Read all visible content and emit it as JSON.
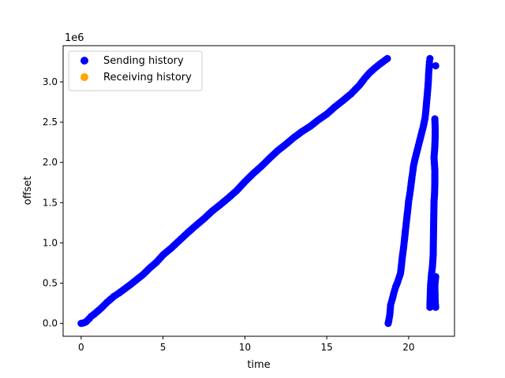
{
  "chart_data": {
    "type": "scatter",
    "title": "",
    "xlabel": "time",
    "ylabel": "offset",
    "y_offset_label": "1e6",
    "xlim": [
      -1.1,
      22.8
    ],
    "ylim": [
      -160000,
      3450000
    ],
    "x_ticks": [
      {
        "value": 0,
        "label": "0"
      },
      {
        "value": 5,
        "label": "5"
      },
      {
        "value": 10,
        "label": "10"
      },
      {
        "value": 15,
        "label": "15"
      },
      {
        "value": 20,
        "label": "20"
      }
    ],
    "y_ticks": [
      {
        "value": 0,
        "label": "0.0"
      },
      {
        "value": 500000,
        "label": "0.5"
      },
      {
        "value": 1000000,
        "label": "1.0"
      },
      {
        "value": 1500000,
        "label": "1.5"
      },
      {
        "value": 2000000,
        "label": "2.0"
      },
      {
        "value": 2500000,
        "label": "2.5"
      },
      {
        "value": 3000000,
        "label": "3.0"
      }
    ],
    "grid": false,
    "legend_position": "top-left",
    "series": [
      {
        "name": "Sending history",
        "color": "#0000ff",
        "points": [
          [
            0.0,
            0
          ],
          [
            0.1,
            4000
          ],
          [
            0.2,
            10000
          ],
          [
            0.3,
            20000
          ],
          [
            0.4,
            40000
          ],
          [
            0.5,
            60000
          ],
          [
            0.6,
            85000
          ],
          [
            0.8,
            115000
          ],
          [
            1.0,
            150000
          ],
          [
            1.2,
            185000
          ],
          [
            1.4,
            225000
          ],
          [
            1.6,
            265000
          ],
          [
            1.8,
            300000
          ],
          [
            2.0,
            335000
          ],
          [
            2.3,
            375000
          ],
          [
            2.6,
            420000
          ],
          [
            3.0,
            480000
          ],
          [
            3.4,
            545000
          ],
          [
            3.8,
            610000
          ],
          [
            4.2,
            690000
          ],
          [
            4.6,
            760000
          ],
          [
            5.0,
            850000
          ],
          [
            5.5,
            935000
          ],
          [
            6.0,
            1030000
          ],
          [
            6.5,
            1125000
          ],
          [
            7.0,
            1215000
          ],
          [
            7.5,
            1300000
          ],
          [
            8.0,
            1395000
          ],
          [
            8.5,
            1475000
          ],
          [
            9.0,
            1560000
          ],
          [
            9.5,
            1650000
          ],
          [
            10.0,
            1760000
          ],
          [
            10.5,
            1860000
          ],
          [
            11.0,
            1950000
          ],
          [
            11.5,
            2050000
          ],
          [
            12.0,
            2145000
          ],
          [
            12.5,
            2225000
          ],
          [
            13.0,
            2310000
          ],
          [
            13.5,
            2385000
          ],
          [
            14.0,
            2450000
          ],
          [
            14.5,
            2530000
          ],
          [
            15.0,
            2600000
          ],
          [
            15.5,
            2690000
          ],
          [
            16.0,
            2770000
          ],
          [
            16.5,
            2855000
          ],
          [
            17.0,
            2960000
          ],
          [
            17.3,
            3040000
          ],
          [
            17.6,
            3110000
          ],
          [
            17.9,
            3165000
          ],
          [
            18.2,
            3215000
          ],
          [
            18.5,
            3260000
          ],
          [
            18.7,
            3290000
          ],
          [
            18.75,
            0
          ],
          [
            18.8,
            50000
          ],
          [
            18.85,
            110000
          ],
          [
            18.9,
            230000
          ],
          [
            19.0,
            300000
          ],
          [
            19.1,
            380000
          ],
          [
            19.2,
            450000
          ],
          [
            19.3,
            500000
          ],
          [
            19.4,
            560000
          ],
          [
            19.5,
            620000
          ],
          [
            19.55,
            700000
          ],
          [
            19.6,
            800000
          ],
          [
            19.65,
            880000
          ],
          [
            19.7,
            960000
          ],
          [
            19.75,
            1050000
          ],
          [
            19.8,
            1150000
          ],
          [
            19.85,
            1240000
          ],
          [
            19.9,
            1330000
          ],
          [
            19.95,
            1420000
          ],
          [
            20.0,
            1520000
          ],
          [
            20.05,
            1580000
          ],
          [
            20.1,
            1650000
          ],
          [
            20.15,
            1730000
          ],
          [
            20.2,
            1810000
          ],
          [
            20.25,
            1880000
          ],
          [
            20.3,
            1960000
          ],
          [
            20.4,
            2050000
          ],
          [
            20.5,
            2130000
          ],
          [
            20.6,
            2210000
          ],
          [
            20.7,
            2290000
          ],
          [
            20.8,
            2370000
          ],
          [
            20.9,
            2450000
          ],
          [
            21.0,
            2550000
          ],
          [
            21.05,
            2640000
          ],
          [
            21.1,
            2760000
          ],
          [
            21.15,
            2870000
          ],
          [
            21.2,
            3000000
          ],
          [
            21.22,
            3100000
          ],
          [
            21.25,
            3180000
          ],
          [
            21.27,
            3250000
          ],
          [
            21.3,
            3290000
          ],
          [
            21.3,
            200000
          ],
          [
            21.32,
            350000
          ],
          [
            21.35,
            500000
          ],
          [
            21.4,
            620000
          ],
          [
            21.45,
            700000
          ],
          [
            21.5,
            850000
          ],
          [
            21.52,
            1160000
          ],
          [
            21.55,
            1520000
          ],
          [
            21.58,
            1600000
          ],
          [
            21.6,
            1750000
          ],
          [
            21.6,
            1900000
          ],
          [
            21.55,
            2060000
          ],
          [
            21.6,
            2200000
          ],
          [
            21.62,
            2330000
          ],
          [
            21.62,
            2420000
          ],
          [
            21.6,
            2540000
          ],
          [
            21.65,
            3200000
          ],
          [
            21.65,
            580000
          ],
          [
            21.6,
            480000
          ],
          [
            21.62,
            260000
          ],
          [
            21.65,
            200000
          ],
          [
            21.5,
            400000
          ],
          [
            21.45,
            550000
          ]
        ]
      },
      {
        "name": "Receiving history",
        "color": "#ffa500",
        "points": []
      }
    ]
  }
}
